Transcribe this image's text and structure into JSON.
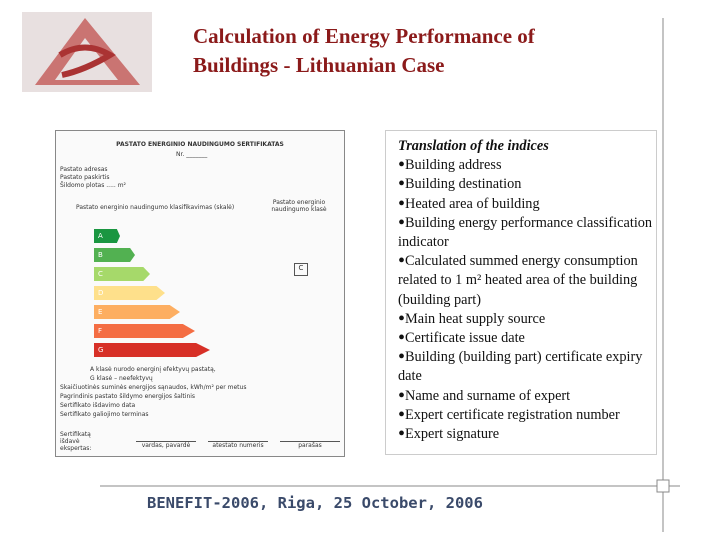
{
  "header": {
    "title_line1": "Calculation of Energy Performance of",
    "title_line2": "Buildings - Lithuanian Case"
  },
  "certificate": {
    "title": "PASTATO ENERGINIO NAUDINGUMO SERTIFIKATAS",
    "number": "Nr. _______",
    "fields": [
      "Pastato adresas",
      "Pastato paskirtis",
      "Šildomo plotas ..... m²"
    ],
    "scale_title": "Pastato energinio naudingumo klasifikavimas (skalė)",
    "class_title": "Pastato energinio naudingumo klasė",
    "classes": [
      "A",
      "B",
      "C",
      "D",
      "E",
      "F",
      "G"
    ],
    "current_class": "C",
    "notes": [
      "A klasė nurodo energinį efektyvų pastatą,",
      "G klasė – neefektyvų",
      "Skaičiuotinės suminės energijos sąnaudos, kWh/m² per metus",
      "Pagrindinis pastato šildymo energijos šaltinis",
      "Sertifikato išdavimo data",
      "Sertifikato galiojimo terminas"
    ],
    "signature_label": "Sertifikatą išdavė ekspertas:",
    "signature_fields": [
      "vardas, pavardė",
      "atestato numeris",
      "parašas"
    ]
  },
  "translation": {
    "title": "Translation of the indices",
    "items": [
      "Building address",
      "Building destination",
      "Heated area of building",
      "Building energy performance classification indicator",
      "Calculated summed energy consumption related to 1 m² heated area of the building (building part)",
      "Main heat supply source",
      "Certificate issue date",
      "Building (building part) certificate expiry date",
      "Name and surname of expert",
      "Expert certificate registration number",
      "Expert signature"
    ]
  },
  "footer": "BENEFIT-2006, Riga, 25 October, 2006"
}
